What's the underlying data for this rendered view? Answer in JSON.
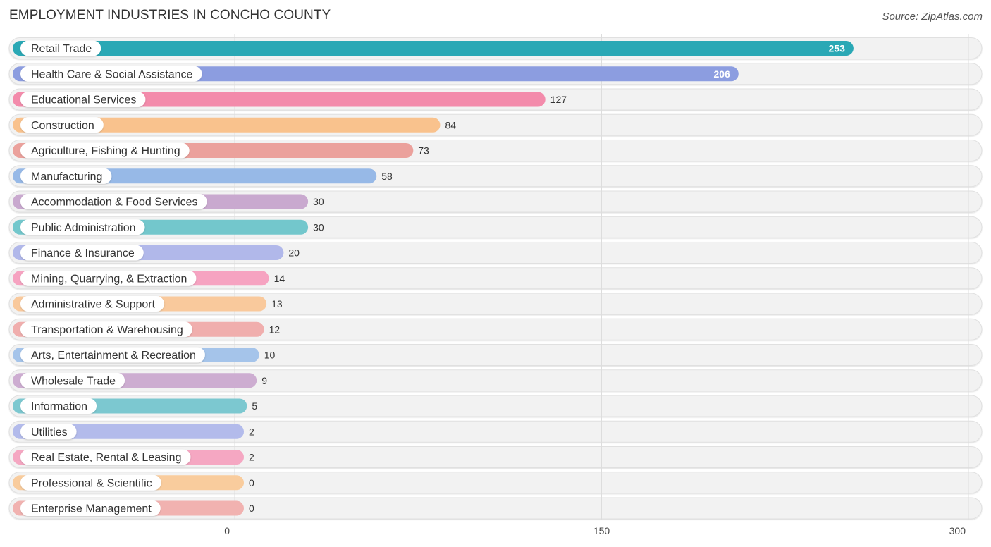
{
  "title": "EMPLOYMENT INDUSTRIES IN CONCHO COUNTY",
  "source": "Source: ZipAtlas.com",
  "chart_data": {
    "type": "bar",
    "orientation": "horizontal",
    "title": "EMPLOYMENT INDUSTRIES IN CONCHO COUNTY",
    "xlabel": "",
    "ylabel": "",
    "xlim": [
      0,
      300
    ],
    "ticks": [
      0,
      150,
      300
    ],
    "tick_labels": [
      "0",
      "150",
      "300"
    ],
    "grid": true,
    "categories": [
      "Retail Trade",
      "Health Care & Social Assistance",
      "Educational Services",
      "Construction",
      "Agriculture, Fishing & Hunting",
      "Manufacturing",
      "Accommodation & Food Services",
      "Public Administration",
      "Finance & Insurance",
      "Mining, Quarrying, & Extraction",
      "Administrative & Support",
      "Transportation & Warehousing",
      "Arts, Entertainment & Recreation",
      "Wholesale Trade",
      "Information",
      "Utilities",
      "Real Estate, Rental & Leasing",
      "Professional & Scientific",
      "Enterprise Management"
    ],
    "values": [
      253,
      206,
      127,
      84,
      73,
      58,
      30,
      30,
      20,
      14,
      13,
      12,
      10,
      9,
      5,
      2,
      2,
      0,
      0
    ],
    "value_labels": [
      "253",
      "206",
      "127",
      "84",
      "73",
      "58",
      "30",
      "30",
      "20",
      "14",
      "13",
      "12",
      "10",
      "9",
      "5",
      "2",
      "2",
      "0",
      "0"
    ],
    "colors": [
      "#2aa8b5",
      "#8c9de0",
      "#f38bab",
      "#f9c28d",
      "#eba19c",
      "#97b9e7",
      "#c9a9cf",
      "#73c7cc",
      "#b1b8ea",
      "#f6a3c1",
      "#f9c99c",
      "#f0aead",
      "#a5c4ea",
      "#cdadd1",
      "#7cc8d0",
      "#b3bbeb",
      "#f5a7c2",
      "#f9cc9d",
      "#f1b2b0"
    ]
  }
}
